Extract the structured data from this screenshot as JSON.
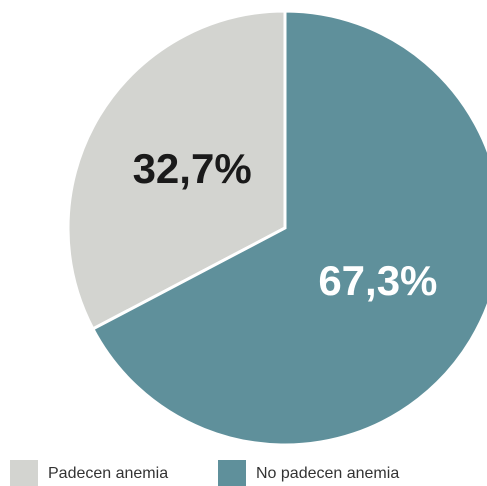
{
  "chart_data": {
    "type": "pie",
    "categories": [
      "Padecen anemia",
      "No padecen anemia"
    ],
    "values": [
      32.7,
      67.3
    ],
    "value_labels": [
      "32,7%",
      "67,3%"
    ],
    "colors": [
      "#d3d4d0",
      "#5f909b"
    ],
    "label_colors": [
      "#1a1a1a",
      "#ffffff"
    ],
    "legend": "bottom"
  }
}
